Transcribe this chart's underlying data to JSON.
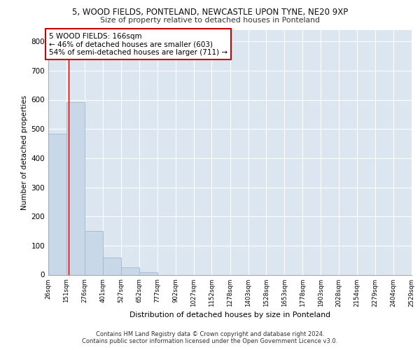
{
  "title1": "5, WOOD FIELDS, PONTELAND, NEWCASTLE UPON TYNE, NE20 9XP",
  "title2": "Size of property relative to detached houses in Ponteland",
  "xlabel": "Distribution of detached houses by size in Ponteland",
  "ylabel": "Number of detached properties",
  "bar_color": "#c8d8e8",
  "bar_edgecolor": "#a0b8cc",
  "annotation_text": "5 WOOD FIELDS: 166sqm\n← 46% of detached houses are smaller (603)\n54% of semi-detached houses are larger (711) →",
  "vline_x": 166,
  "vline_color": "#cc0000",
  "annotation_box_edgecolor": "#cc0000",
  "bin_edges": [
    26,
    151,
    276,
    401,
    527,
    652,
    777,
    902,
    1027,
    1152,
    1278,
    1403,
    1528,
    1653,
    1778,
    1903,
    2028,
    2154,
    2279,
    2404,
    2529
  ],
  "bar_heights": [
    483,
    591,
    150,
    60,
    25,
    8,
    0,
    0,
    0,
    0,
    0,
    0,
    0,
    0,
    0,
    0,
    0,
    0,
    0,
    0
  ],
  "ylim": [
    0,
    840
  ],
  "yticks": [
    0,
    100,
    200,
    300,
    400,
    500,
    600,
    700,
    800
  ],
  "background_color": "#dce6f0",
  "grid_color": "#ffffff",
  "footer1": "Contains HM Land Registry data © Crown copyright and database right 2024.",
  "footer2": "Contains public sector information licensed under the Open Government Licence v3.0."
}
